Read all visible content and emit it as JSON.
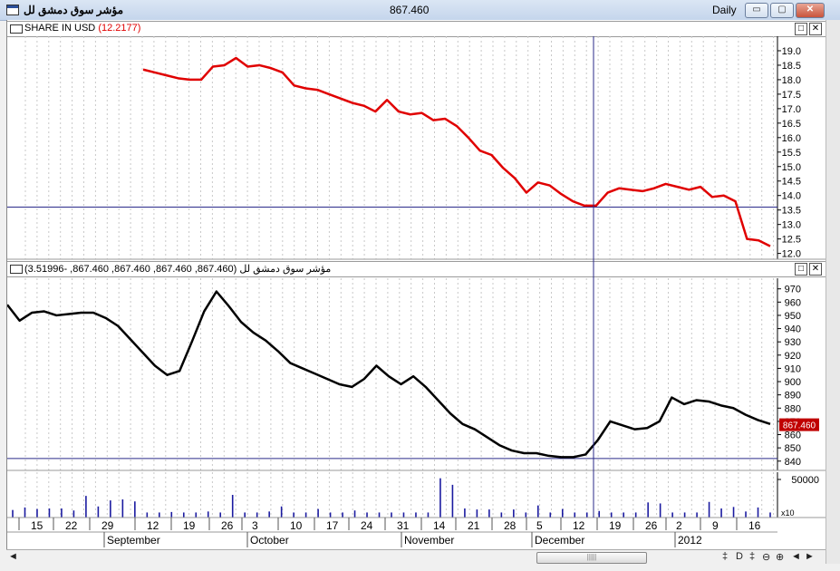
{
  "window": {
    "title": "مؤشر سوق دمشق لل",
    "center_value": "867.460",
    "period": "Daily",
    "btn_min": "▭",
    "btn_max": "▢",
    "btn_close": "✕"
  },
  "panes": {
    "share": {
      "label": "SHARE IN USD",
      "value": "(12.2177)"
    },
    "index": {
      "label": "مؤشر سوق دمشق لل (867.460, 867.460, 867.460, 867.460, -3.51996)",
      "last_marker": "867.460"
    },
    "volume": {
      "top_tick": "50000",
      "multiplier": "x10"
    }
  },
  "pane_buttons": {
    "restore": "□",
    "close": "✕"
  },
  "scroll": {
    "nav_buttons": [
      "‡",
      "D",
      "‡",
      "⊖",
      "⊕",
      "◄",
      "►"
    ],
    "left_arrow": "◄",
    "right_arrow": "►",
    "thumb_grip": "|||||"
  },
  "chart_data": [
    {
      "type": "line",
      "series": [
        {
          "color": "#e00000",
          "values": [
            18.35,
            18.25,
            18.15,
            18.05,
            18.0,
            18.0,
            18.45,
            18.5,
            18.75,
            18.45,
            18.5,
            18.4,
            18.25,
            17.8,
            17.7,
            17.65,
            17.5,
            17.35,
            17.2,
            17.1,
            16.9,
            17.3,
            16.9,
            16.8,
            16.85,
            16.6,
            16.65,
            16.4,
            16.0,
            15.55,
            15.4,
            14.95,
            14.6,
            14.1,
            14.45,
            14.35,
            14.05,
            13.8,
            13.65,
            13.65,
            14.1,
            14.25,
            14.2,
            14.15,
            14.25,
            14.4,
            14.3,
            14.2,
            14.3,
            13.95,
            14.0,
            13.8,
            12.5,
            12.45,
            12.25
          ]
        }
      ],
      "y_ticks": [
        12.0,
        12.5,
        13.0,
        13.5,
        14.0,
        14.5,
        15.0,
        15.5,
        16.0,
        16.5,
        17.0,
        17.5,
        18.0,
        18.5,
        19.0
      ],
      "ylim": [
        11.8,
        19.5
      ],
      "crosshair_y": 13.6
    },
    {
      "type": "line",
      "series": [
        {
          "color": "#000000",
          "values": [
            958,
            946,
            952,
            953,
            950,
            951,
            952,
            952,
            948,
            942,
            932,
            922,
            912,
            905,
            908,
            930,
            953,
            968,
            957,
            945,
            937,
            931,
            923,
            914,
            910,
            906,
            902,
            898,
            896,
            902,
            912,
            904,
            898,
            904,
            896,
            886,
            876,
            868,
            864,
            858,
            852,
            848,
            846,
            846,
            844,
            843,
            843,
            845,
            856,
            870,
            867,
            864,
            865,
            870,
            888,
            883,
            886,
            885,
            882,
            880,
            875,
            871,
            868
          ]
        }
      ],
      "y_ticks": [
        840,
        850,
        860,
        870,
        880,
        890,
        900,
        910,
        920,
        930,
        940,
        950,
        960,
        970
      ],
      "ylim": [
        833,
        978
      ],
      "crosshair_y": 842,
      "last_value": 867.46
    },
    {
      "type": "bar",
      "values": [
        1.5,
        2.0,
        1.7,
        1.8,
        1.8,
        1.4,
        4.3,
        2.2,
        3.4,
        3.6,
        3.2,
        1.0,
        1.0,
        1.1,
        1.0,
        1.0,
        1.2,
        1.0,
        4.5,
        1.0,
        1.0,
        1.2,
        2.2,
        1.0,
        1.0,
        1.7,
        1.0,
        1.0,
        1.4,
        1.0,
        1.0,
        1.0,
        1.0,
        1.0,
        1.0,
        7.8,
        6.5,
        1.8,
        1.6,
        1.6,
        1.0,
        1.6,
        1.0,
        2.4,
        1.0,
        1.7,
        1.0,
        1.0,
        1.3,
        1.0,
        1.0,
        1.0,
        3.0,
        2.8,
        1.0,
        1.0,
        1.0,
        3.1,
        1.8,
        2.1,
        1.2,
        2.0,
        1.0
      ],
      "y_ticks": [
        50000
      ]
    }
  ],
  "x_axis": {
    "day_labels": [
      "15",
      "22",
      "29",
      "12",
      "19",
      "26",
      "3",
      "10",
      "17",
      "24",
      "31",
      "14",
      "21",
      "28",
      "5",
      "12",
      "19",
      "26",
      "2",
      "9",
      "16"
    ],
    "month_labels": [
      "September",
      "October",
      "November",
      "December",
      "2012"
    ]
  }
}
